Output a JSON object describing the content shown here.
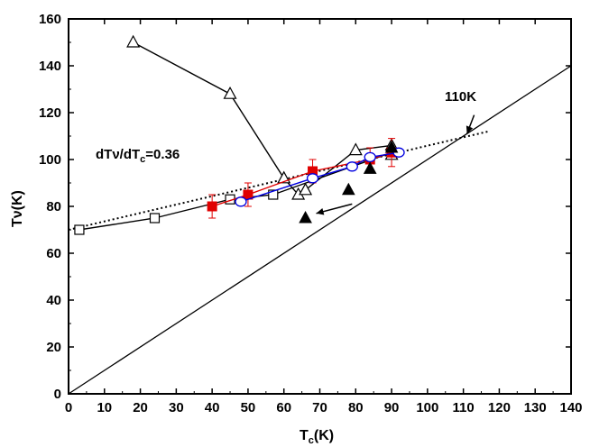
{
  "chart_data": {
    "type": "scatter",
    "title": "",
    "xlabel": "T_c(K)",
    "ylabel": "Tν(K)",
    "xlim": [
      0,
      140
    ],
    "ylim": [
      0,
      160
    ],
    "xticks": [
      0,
      10,
      20,
      30,
      40,
      50,
      60,
      70,
      80,
      90,
      100,
      110,
      120,
      130,
      140
    ],
    "yticks": [
      0,
      20,
      40,
      60,
      80,
      100,
      120,
      140,
      160
    ],
    "grid": false,
    "series": [
      {
        "marker": "open-square",
        "color": "#000000",
        "connected": true,
        "x": [
          3,
          24,
          45,
          57,
          90
        ],
        "y": [
          70,
          75,
          83,
          85,
          103
        ]
      },
      {
        "marker": "open-triangle",
        "color": "#000000",
        "connected": true,
        "x": [
          18,
          45,
          60,
          64,
          66,
          80,
          90,
          90
        ],
        "y": [
          150,
          128,
          92,
          85,
          87,
          104,
          106,
          102
        ]
      },
      {
        "marker": "filled-square",
        "color": "#e00000",
        "connected": true,
        "x": [
          40,
          50,
          68,
          84,
          90
        ],
        "y": [
          80,
          85,
          95,
          100,
          103
        ],
        "err": [
          5,
          5,
          5,
          5,
          6
        ]
      },
      {
        "marker": "open-circle",
        "color": "#0000e0",
        "connected": true,
        "x": [
          48,
          68,
          79,
          84,
          92
        ],
        "y": [
          82,
          92,
          97,
          101,
          103
        ]
      },
      {
        "marker": "filled-triangle",
        "color": "#000000",
        "connected": false,
        "x": [
          66,
          78,
          84,
          90
        ],
        "y": [
          75,
          87,
          96,
          105
        ]
      }
    ],
    "reference_lines": [
      {
        "style": "solid",
        "x": [
          0,
          140
        ],
        "y": [
          0,
          140
        ]
      },
      {
        "style": "dotted",
        "x": [
          0,
          117
        ],
        "y": [
          70,
          112
        ]
      }
    ],
    "annotations": {
      "slope_prefix": "dTν/dT",
      "slope_sub": "c",
      "slope_suffix": "=0.36",
      "t110": "110K"
    },
    "arrows": [
      {
        "from": [
          79,
          81
        ],
        "to": [
          69,
          77
        ]
      },
      {
        "from": [
          113,
          119
        ],
        "to": [
          111,
          111
        ]
      }
    ]
  }
}
